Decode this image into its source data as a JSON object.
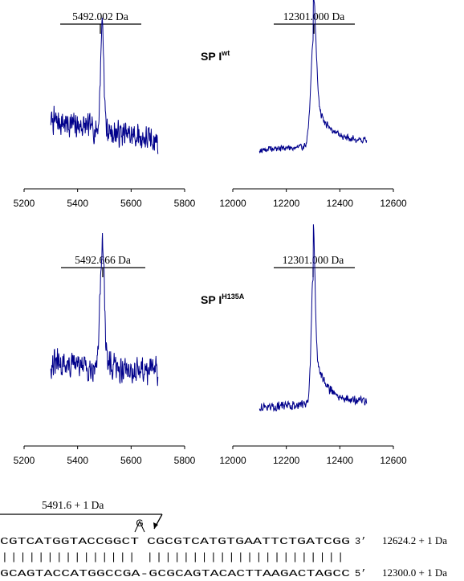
{
  "colors": {
    "trace": "#00008B",
    "axis": "#000000",
    "text": "#000000"
  },
  "samples": [
    {
      "label_main": "SP I",
      "label_sup": "wt"
    },
    {
      "label_main": "SP I",
      "label_sup": "H135A"
    }
  ],
  "chart_data": [
    {
      "type": "line",
      "title": "",
      "xlabel": "",
      "ylabel": "",
      "xlim": [
        5200,
        5800
      ],
      "xticks": [
        "5200",
        "5400",
        "5600",
        "5800"
      ],
      "peak_label": "5492.002 Da",
      "series": [
        {
          "x_range": [
            5300,
            5700
          ],
          "baseline": 0.45,
          "slope": -0.35,
          "noise": 0.55,
          "peak_x": 5492,
          "peak_height": 1.9,
          "peak_width": 6,
          "tail": 0,
          "seed": 7
        }
      ]
    },
    {
      "type": "line",
      "title": "",
      "xlabel": "",
      "ylabel": "",
      "xlim": [
        12000,
        12600
      ],
      "xticks": [
        "12000",
        "12200",
        "12400",
        "12600"
      ],
      "peak_label": "12301.000 Da",
      "series": [
        {
          "x_range": [
            12100,
            12500
          ],
          "baseline": 0.22,
          "slope": 0.12,
          "noise": 0.12,
          "peak_x": 12301,
          "peak_height": 1.55,
          "peak_width": 10,
          "tail": 60,
          "seed": 19
        }
      ]
    },
    {
      "type": "line",
      "title": "",
      "xlabel": "",
      "ylabel": "",
      "xlim": [
        5200,
        5800
      ],
      "xticks": [
        "5200",
        "5400",
        "5600",
        "5800"
      ],
      "peak_label": "5492.666 Da",
      "series": [
        {
          "x_range": [
            5300,
            5700
          ],
          "baseline": 0.5,
          "slope": -0.1,
          "noise": 0.45,
          "peak_x": 5492,
          "peak_height": 1.65,
          "peak_width": 8,
          "tail": 0,
          "seed": 31
        }
      ]
    },
    {
      "type": "line",
      "title": "",
      "xlabel": "",
      "ylabel": "",
      "xlim": [
        12000,
        12600
      ],
      "xticks": [
        "12000",
        "12200",
        "12400",
        "12600"
      ],
      "peak_label": "12301.000 Da",
      "series": [
        {
          "x_range": [
            12100,
            12500
          ],
          "baseline": 0.18,
          "slope": 0.08,
          "noise": 0.14,
          "peak_x": 12300,
          "peak_height": 1.65,
          "peak_width": 7,
          "tail": 45,
          "seed": 43
        }
      ]
    }
  ],
  "sequence": {
    "fragment_label": "5491.6 + 1 Da",
    "insert_base": "G",
    "top_left": "CGTCATGGTACCGGCT",
    "top_right": "CGCGTCATGTGAATTCTGATCGG",
    "top_end": "3’",
    "top_mass": "12624.2 + 1 Da",
    "pairs": "||||||||||||||| ||||||||||||||||||||||",
    "bottom": "GCAGTACCATGGCCGA-GCGCAGTACACTTAAGACTAGCC",
    "bottom_end": "5’",
    "bottom_mass": "12300.0 + 1 Da"
  }
}
